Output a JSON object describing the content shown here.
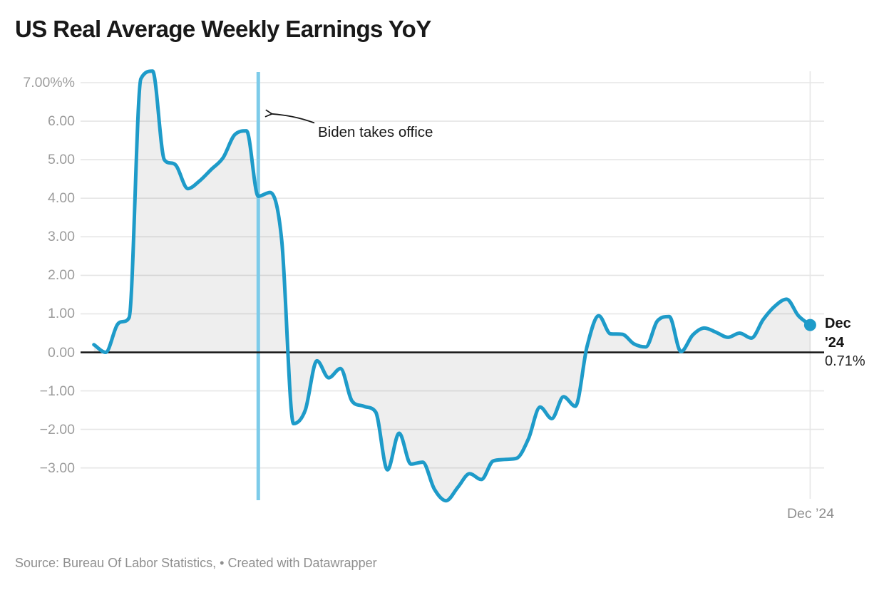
{
  "header": {
    "title": "US Real Average Weekly Earnings YoY"
  },
  "chart_data": {
    "type": "area",
    "title": "US Real Average Weekly Earnings YoY",
    "xlabel": "",
    "ylabel": "",
    "unit": "%",
    "ylim": [
      -3.9,
      7.35
    ],
    "grid": true,
    "legend": "none",
    "line_color": "#1e9bc9",
    "fill_color": "rgba(0,0,0,0.066)",
    "event_line_color": "#7dcbe9",
    "x": [
      "2019-11",
      "2019-12",
      "2020-01",
      "2020-02",
      "2020-03",
      "2020-04",
      "2020-05",
      "2020-06",
      "2020-07",
      "2020-08",
      "2020-09",
      "2020-10",
      "2020-11",
      "2020-12",
      "2021-01",
      "2021-02",
      "2021-03",
      "2021-04",
      "2021-05",
      "2021-06",
      "2021-07",
      "2021-08",
      "2021-09",
      "2021-10",
      "2021-11",
      "2021-12",
      "2022-01",
      "2022-02",
      "2022-03",
      "2022-04",
      "2022-05",
      "2022-06",
      "2022-07",
      "2022-08",
      "2022-09",
      "2022-10",
      "2022-11",
      "2022-12",
      "2023-01",
      "2023-02",
      "2023-03",
      "2023-04",
      "2023-05",
      "2023-06",
      "2023-07",
      "2023-08",
      "2023-09",
      "2023-10",
      "2023-11",
      "2023-12",
      "2024-01",
      "2024-02",
      "2024-03",
      "2024-04",
      "2024-05",
      "2024-06",
      "2024-07",
      "2024-08",
      "2024-09",
      "2024-10",
      "2024-11",
      "2024-12"
    ],
    "values": [
      0.2,
      0.0,
      0.72,
      0.9,
      7.1,
      7.3,
      5.0,
      4.85,
      4.25,
      4.45,
      4.75,
      5.05,
      5.65,
      5.75,
      4.05,
      4.15,
      2.9,
      -1.85,
      -1.5,
      -0.22,
      -0.66,
      -0.42,
      -1.27,
      -1.4,
      -1.55,
      -3.05,
      -2.1,
      -2.9,
      -2.85,
      -3.55,
      -3.85,
      -3.5,
      -3.15,
      -3.3,
      -2.82,
      -2.78,
      -2.75,
      -2.25,
      -1.42,
      -1.72,
      -1.15,
      -1.4,
      0.15,
      0.95,
      0.48,
      0.47,
      0.22,
      0.14,
      0.82,
      0.93,
      0.02,
      0.45,
      0.63,
      0.52,
      0.39,
      0.5,
      0.37,
      0.85,
      1.2,
      1.38,
      0.95,
      0.71
    ],
    "y_ticks": {
      "labels": [
        "7.00%%",
        "6.00",
        "5.00",
        "4.00",
        "3.00",
        "2.00",
        "1.00",
        "0.00",
        "−1.00",
        "−2.00",
        "−3.00"
      ],
      "values": [
        7,
        6,
        5,
        4,
        3,
        2,
        1,
        0,
        -1,
        -2,
        -3
      ]
    },
    "x_axis_labels": [
      "Dec ’24"
    ],
    "annotations": {
      "event_line": {
        "label": "Biden takes office",
        "x": "2021-01"
      },
      "latest_point": {
        "x": "2024-12",
        "value": 0.71,
        "label_line1": "Dec",
        "label_line2": "'24",
        "value_label": "0.71%"
      }
    }
  },
  "footer": {
    "source": "Source: Bureau Of Labor Statistics,",
    "bullet": "•",
    "credit": "Created with Datawrapper"
  }
}
